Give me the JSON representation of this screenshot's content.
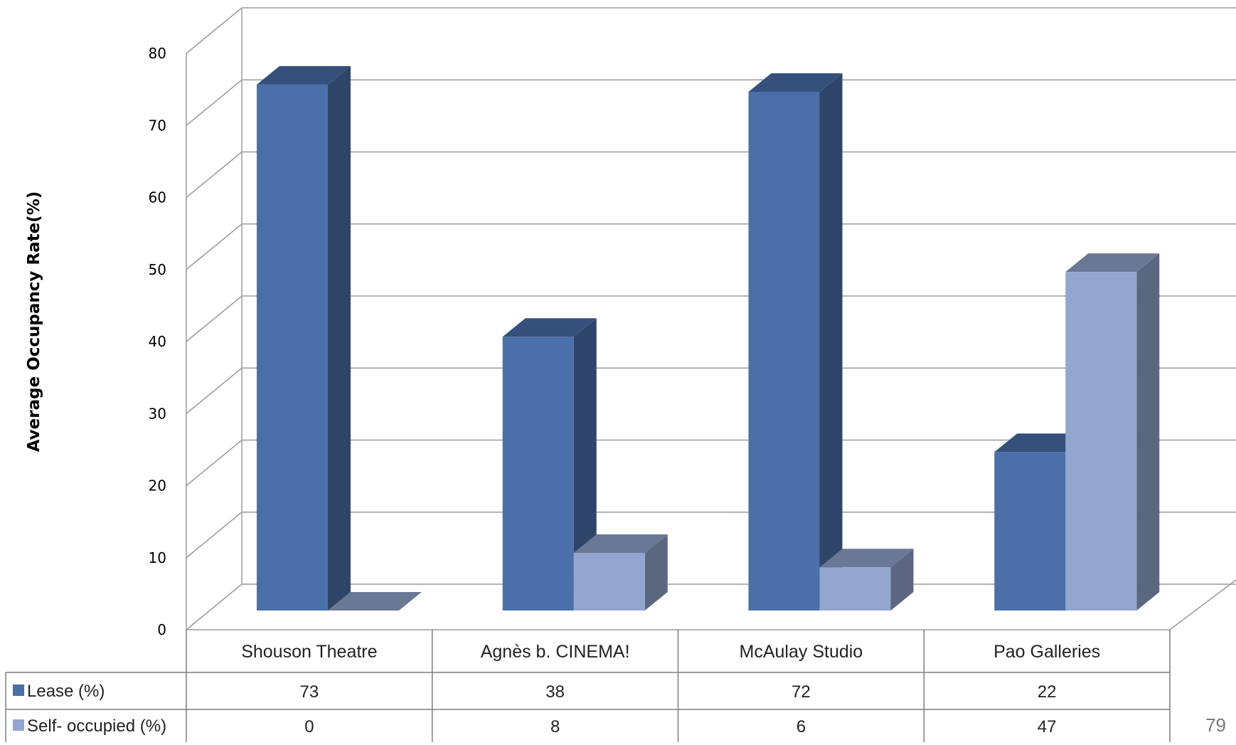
{
  "page_number": "79",
  "chart_data": {
    "type": "bar",
    "title": "",
    "xlabel": "",
    "ylabel": "Average Occupancy Rate(%)",
    "ylim": [
      0,
      80
    ],
    "yticks": [
      "0",
      "10",
      "20",
      "30",
      "40",
      "50",
      "60",
      "70",
      "80"
    ],
    "grid": true,
    "legend_placement": "data-table",
    "categories": [
      "Shouson Theatre",
      "Agnès b. CINEMA!",
      "McAulay Studio",
      "Pao Galleries"
    ],
    "series": [
      {
        "name": "Lease (%)",
        "values": [
          73,
          38,
          72,
          22
        ],
        "color": "#4a6fa9",
        "display_values": [
          "73",
          "38",
          "72",
          "22"
        ]
      },
      {
        "name": "Self- occupied (%)",
        "values": [
          0,
          8,
          6,
          47
        ],
        "color": "#93a6cf",
        "display_values": [
          "0",
          "8",
          "6",
          "47"
        ]
      }
    ]
  }
}
